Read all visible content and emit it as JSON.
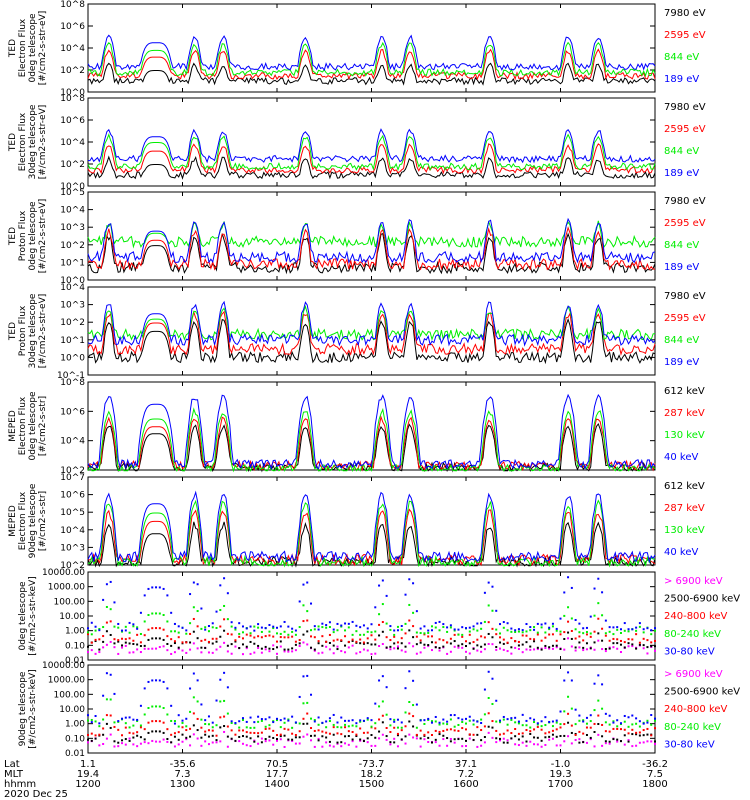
{
  "figure": {
    "date_label": "2020 Dec 25",
    "footer_row_labels": [
      "Lat",
      "MLT",
      "hhmm"
    ],
    "footer_columns": [
      {
        "lat": "1.1",
        "mlt": "19.4",
        "hhmm": "1200"
      },
      {
        "lat": "-35.6",
        "mlt": "7.3",
        "hhmm": "1300"
      },
      {
        "lat": "70.5",
        "mlt": "17.7",
        "hhmm": "1400"
      },
      {
        "lat": "-73.7",
        "mlt": "18.2",
        "hhmm": "1500"
      },
      {
        "lat": "37.1",
        "mlt": "7.2",
        "hhmm": "1600"
      },
      {
        "lat": "-1.0",
        "mlt": "19.3",
        "hhmm": "1700"
      },
      {
        "lat": "-36.2",
        "mlt": "7.5",
        "hhmm": "1800"
      }
    ],
    "colors": {
      "black": "#000000",
      "red": "#ff0000",
      "green": "#00ee00",
      "blue": "#0000ff",
      "magenta": "#ff00ff"
    }
  },
  "chart_data": [
    {
      "type": "line",
      "title": "TED 0deg Electron Flux",
      "scale": "log",
      "ylabel": [
        "TED",
        "Electron Flux",
        "0deg telescope",
        "[#/cm2-s-str-eV]"
      ],
      "ylim": [
        1,
        100000000
      ],
      "yticks": [
        "10^0",
        "10^2",
        "10^4",
        "10^6",
        "10^8"
      ],
      "x": [
        1200,
        1800
      ],
      "xticks": [
        1200,
        1300,
        1400,
        1500,
        1600,
        1700,
        1800
      ],
      "series": [
        {
          "name": "7980 eV",
          "color": "#000000",
          "base": 10,
          "peak": 300
        },
        {
          "name": "2595 eV",
          "color": "#ff0000",
          "base": 30,
          "peak": 5000
        },
        {
          "name": "844 eV",
          "color": "#00ee00",
          "base": 60,
          "peak": 20000
        },
        {
          "name": "189 eV",
          "color": "#0000ff",
          "base": 200,
          "peak": 100000
        }
      ]
    },
    {
      "type": "line",
      "title": "TED 30deg Electron Flux",
      "scale": "log",
      "ylabel": [
        "TED",
        "Electron Flux",
        "30deg telescope",
        "[#/cm2-s-str-eV]"
      ],
      "ylim": [
        1,
        100000000
      ],
      "yticks": [
        "10^0",
        "10^2",
        "10^4",
        "10^6",
        "10^8"
      ],
      "x": [
        1200,
        1800
      ],
      "xticks": [
        1200,
        1300,
        1400,
        1500,
        1600,
        1700,
        1800
      ],
      "series": [
        {
          "name": "7980 eV",
          "color": "#000000",
          "base": 10,
          "peak": 300
        },
        {
          "name": "2595 eV",
          "color": "#ff0000",
          "base": 30,
          "peak": 5000
        },
        {
          "name": "844 eV",
          "color": "#00ee00",
          "base": 60,
          "peak": 30000
        },
        {
          "name": "189 eV",
          "color": "#0000ff",
          "base": 300,
          "peak": 100000
        }
      ]
    },
    {
      "type": "line",
      "title": "TED 0deg Proton Flux",
      "scale": "log",
      "ylabel": [
        "TED",
        "Proton Flux",
        "0deg telescope",
        "[#/cm2-s-str-eV]"
      ],
      "ylim": [
        1,
        100000
      ],
      "yticks": [
        "10^0",
        "10^1",
        "10^2",
        "10^3",
        "10^4",
        "10^5"
      ],
      "x": [
        1200,
        1800
      ],
      "xticks": [
        1200,
        1300,
        1400,
        1500,
        1600,
        1700,
        1800
      ],
      "series": [
        {
          "name": "7980 eV",
          "color": "#000000",
          "base": 5,
          "peak": 300
        },
        {
          "name": "2595 eV",
          "color": "#ff0000",
          "base": 8,
          "peak": 600
        },
        {
          "name": "844 eV",
          "color": "#00ee00",
          "base": 150,
          "peak": 1500
        },
        {
          "name": "189 eV",
          "color": "#0000ff",
          "base": 20,
          "peak": 2000
        }
      ]
    },
    {
      "type": "line",
      "title": "TED 30deg Proton Flux",
      "scale": "log",
      "ylabel": [
        "TED",
        "Proton Flux",
        "30deg telescope",
        "[#/cm2-s-str-eV]"
      ],
      "ylim": [
        0.1,
        10000
      ],
      "yticks": [
        "10^-1",
        "10^0",
        "10^1",
        "10^2",
        "10^3",
        "10^4"
      ],
      "x": [
        1200,
        1800
      ],
      "xticks": [
        1200,
        1300,
        1400,
        1500,
        1600,
        1700,
        1800
      ],
      "series": [
        {
          "name": "7980 eV",
          "color": "#000000",
          "base": 1,
          "peak": 100
        },
        {
          "name": "2595 eV",
          "color": "#ff0000",
          "base": 3,
          "peak": 300
        },
        {
          "name": "844 eV",
          "color": "#00ee00",
          "base": 20,
          "peak": 500
        },
        {
          "name": "189 eV",
          "color": "#0000ff",
          "base": 10,
          "peak": 1000
        }
      ]
    },
    {
      "type": "line",
      "title": "MEPED 0deg Electron Flux",
      "scale": "log",
      "ylabel": [
        "MEPED",
        "Electron Flux",
        "0deg telescope",
        "[#/cm2-s-str]"
      ],
      "ylim": [
        100,
        100000000
      ],
      "yticks": [
        "10^2",
        "10^4",
        "10^6",
        "10^8"
      ],
      "x": [
        1200,
        1800
      ],
      "xticks": [
        1200,
        1300,
        1400,
        1500,
        1600,
        1700,
        1800
      ],
      "series": [
        {
          "name": "612 keV",
          "color": "#000000",
          "base": 150,
          "peak": 100000
        },
        {
          "name": "287 keV",
          "color": "#ff0000",
          "base": 200,
          "peak": 300000
        },
        {
          "name": "130 keV",
          "color": "#00ee00",
          "base": 120,
          "peak": 1000000
        },
        {
          "name": "40 keV",
          "color": "#0000ff",
          "base": 250,
          "peak": 10000000
        }
      ]
    },
    {
      "type": "line",
      "title": "MEPED 90deg Electron Flux",
      "scale": "log",
      "ylabel": [
        "MEPED",
        "Electron Flux",
        "90deg telescope",
        "[#/cm2-s-str]"
      ],
      "ylim": [
        100,
        10000000
      ],
      "yticks": [
        "10^2",
        "10^3",
        "10^4",
        "10^5",
        "10^6",
        "10^7"
      ],
      "x": [
        1200,
        1800
      ],
      "xticks": [
        1200,
        1300,
        1400,
        1500,
        1600,
        1700,
        1800
      ],
      "series": [
        {
          "name": "612 keV",
          "color": "#000000",
          "base": 150,
          "peak": 20000
        },
        {
          "name": "287 keV",
          "color": "#ff0000",
          "base": 200,
          "peak": 100000
        },
        {
          "name": "130 keV",
          "color": "#00ee00",
          "base": 150,
          "peak": 300000
        },
        {
          "name": "40 keV",
          "color": "#0000ff",
          "base": 300,
          "peak": 1000000
        }
      ]
    },
    {
      "type": "scatter",
      "title": "MEPED 0deg Proton Flux",
      "scale": "log",
      "ylabel": [
        "0deg telescope",
        "[#/cm2-s-str-keV]"
      ],
      "ylim": [
        0.01,
        10000
      ],
      "yticks": [
        "0.01",
        "0.10",
        "1.00",
        "10.00",
        "100.00",
        "1000.00",
        "10000.00"
      ],
      "x": [
        1200,
        1800
      ],
      "xticks": [
        1200,
        1300,
        1400,
        1500,
        1600,
        1700,
        1800
      ],
      "series": [
        {
          "name": "> 6900 keV",
          "color": "#ff00ff",
          "base": 0.05,
          "peak": 0.2
        },
        {
          "name": "2500-6900 keV",
          "color": "#000000",
          "base": 0.1,
          "peak": 1
        },
        {
          "name": "240-800 keV",
          "color": "#ff0000",
          "base": 0.3,
          "peak": 5
        },
        {
          "name": "80-240 keV",
          "color": "#00ee00",
          "base": 1,
          "peak": 50
        },
        {
          "name": "30-80 keV",
          "color": "#0000ff",
          "base": 2,
          "peak": 3000
        }
      ]
    },
    {
      "type": "scatter",
      "title": "MEPED 90deg Proton Flux",
      "scale": "log",
      "ylabel": [
        "90deg telescope",
        "[#/cm2-s-str-keV]"
      ],
      "ylim": [
        0.01,
        10000
      ],
      "yticks": [
        "0.01",
        "0.10",
        "1.00",
        "10.00",
        "100.00",
        "1000.00",
        "10000.00"
      ],
      "x": [
        1200,
        1800
      ],
      "xticks": [
        1200,
        1300,
        1400,
        1500,
        1600,
        1700,
        1800
      ],
      "series": [
        {
          "name": "> 6900 keV",
          "color": "#ff00ff",
          "base": 0.05,
          "peak": 0.2
        },
        {
          "name": "2500-6900 keV",
          "color": "#000000",
          "base": 0.1,
          "peak": 1
        },
        {
          "name": "240-800 keV",
          "color": "#ff0000",
          "base": 0.3,
          "peak": 5
        },
        {
          "name": "80-240 keV",
          "color": "#00ee00",
          "base": 1,
          "peak": 50
        },
        {
          "name": "30-80 keV",
          "color": "#0000ff",
          "base": 2,
          "peak": 3000
        }
      ]
    }
  ]
}
